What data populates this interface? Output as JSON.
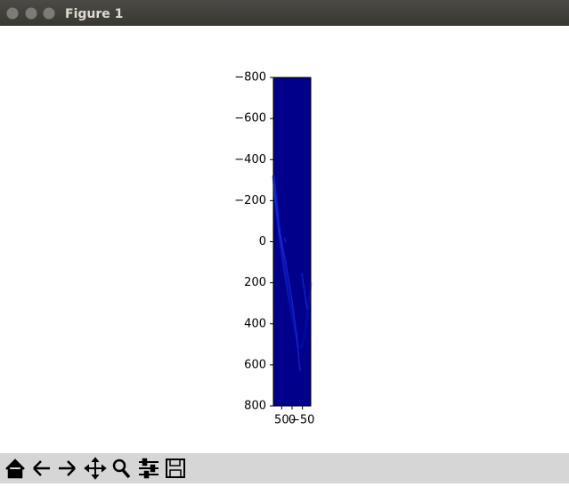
{
  "window": {
    "title": "Figure 1"
  },
  "chart_data": {
    "type": "image",
    "xlim": [
      90,
      -90
    ],
    "xticks": [
      50,
      0,
      {
        "value": -50,
        "label": "−50"
      }
    ],
    "ylim": [
      -800,
      800
    ],
    "yticks": [
      {
        "value": -800,
        "label": "−800"
      },
      {
        "value": -600,
        "label": "−600"
      },
      {
        "value": -400,
        "label": "−400"
      },
      {
        "value": -200,
        "label": "−200"
      },
      0,
      200,
      400,
      600,
      800
    ],
    "colormap": "#00008b"
  }
}
